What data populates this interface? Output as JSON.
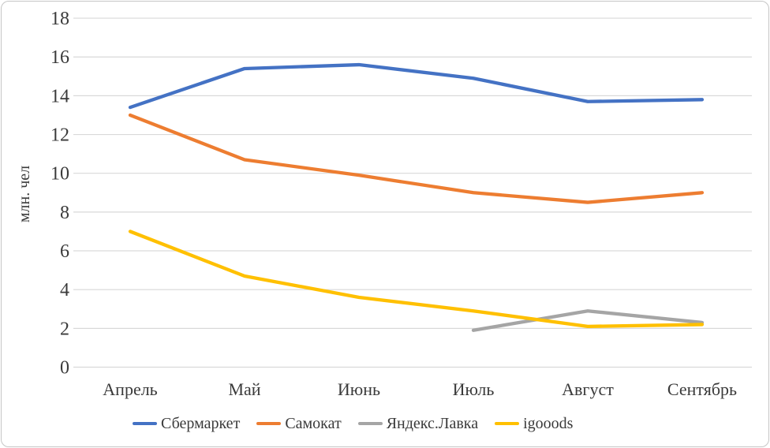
{
  "chart_data": {
    "type": "line",
    "title": "",
    "xlabel": "",
    "ylabel": "млн. чел",
    "categories": [
      "Апрель",
      "Май",
      "Июнь",
      "Июль",
      "Август",
      "Сентябрь"
    ],
    "series": [
      {
        "name": "Сбермаркет",
        "color": "#4472C4",
        "values": [
          13.4,
          15.4,
          15.6,
          14.9,
          13.7,
          13.8
        ]
      },
      {
        "name": "Самокат",
        "color": "#ED7D31",
        "values": [
          13.0,
          10.7,
          9.9,
          9.0,
          8.5,
          9.0
        ]
      },
      {
        "name": "Яндекс.Лавка",
        "color": "#A5A5A5",
        "values": [
          null,
          null,
          null,
          1.9,
          2.9,
          2.3
        ]
      },
      {
        "name": "igooods",
        "color": "#FFC000",
        "values": [
          7.0,
          4.7,
          3.6,
          2.9,
          2.1,
          2.2
        ]
      }
    ],
    "ylim": [
      0,
      18
    ],
    "ytick_step": 2,
    "grid": true,
    "legend_position": "bottom",
    "gridline_color": "#D9D9D9",
    "text_color": "#3a3a3a"
  }
}
